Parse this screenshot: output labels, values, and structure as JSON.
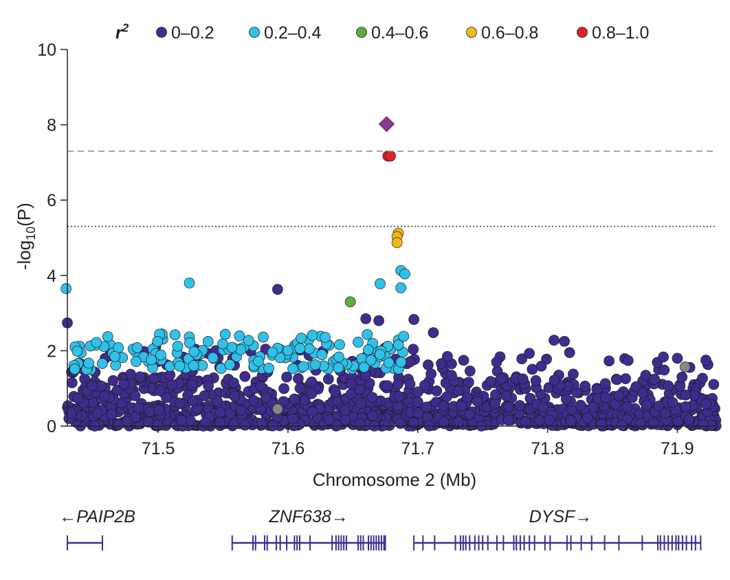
{
  "chart_data": {
    "type": "scatter",
    "subtype": "regional-association-plot",
    "xlabel": "Chromosome 2 (Mb)",
    "ylabel_prefix": "-log",
    "ylabel_sub": "10",
    "ylabel_suffix": "(P)",
    "xlim": [
      71.43,
      71.93
    ],
    "ylim": [
      0,
      10
    ],
    "xticks": [
      71.5,
      71.6,
      71.7,
      71.8,
      71.9
    ],
    "yticks": [
      0,
      2,
      4,
      6,
      8,
      10
    ],
    "genome_wide_threshold": 7.3,
    "suggestive_threshold": 5.3,
    "legend": {
      "title": "r",
      "title_sup": "2",
      "entries": [
        {
          "label": "0–0.2",
          "color": "#3f2d8e"
        },
        {
          "label": "0.2–0.4",
          "color": "#30c0e8"
        },
        {
          "label": "0.4–0.6",
          "color": "#5aad3a"
        },
        {
          "label": "0.6–0.8",
          "color": "#f0b81a"
        },
        {
          "label": "0.8–1.0",
          "color": "#e0202a"
        }
      ]
    },
    "lead_snp": {
      "x": 71.676,
      "y": 8.02,
      "color": "#8a3a8a"
    },
    "highlight_points": [
      {
        "x": 71.677,
        "y": 7.17,
        "bin": 4
      },
      {
        "x": 71.679,
        "y": 7.17,
        "bin": 4
      },
      {
        "x": 71.685,
        "y": 5.12,
        "bin": 3
      },
      {
        "x": 71.684,
        "y": 5.03,
        "bin": 3
      },
      {
        "x": 71.684,
        "y": 4.87,
        "bin": 3
      },
      {
        "x": 71.648,
        "y": 3.3,
        "bin": 2
      },
      {
        "x": 71.429,
        "y": 3.65,
        "bin": 1
      },
      {
        "x": 71.524,
        "y": 3.8,
        "bin": 1
      },
      {
        "x": 71.671,
        "y": 3.78,
        "bin": 1
      },
      {
        "x": 71.687,
        "y": 4.13,
        "bin": 1
      },
      {
        "x": 71.69,
        "y": 4.04,
        "bin": 1
      },
      {
        "x": 71.687,
        "y": 3.67,
        "bin": 1
      },
      {
        "x": 71.592,
        "y": 3.63,
        "bin": 0
      },
      {
        "x": 71.43,
        "y": 2.74,
        "bin": 0
      },
      {
        "x": 71.66,
        "y": 2.85,
        "bin": 0
      },
      {
        "x": 71.67,
        "y": 2.8,
        "bin": 0
      },
      {
        "x": 71.697,
        "y": 2.83,
        "bin": 0
      },
      {
        "x": 71.712,
        "y": 2.48,
        "bin": 0
      },
      {
        "x": 71.786,
        "y": 1.93,
        "bin": 0
      },
      {
        "x": 71.805,
        "y": 2.28,
        "bin": 0
      },
      {
        "x": 71.813,
        "y": 2.25,
        "bin": 0
      },
      {
        "x": 71.817,
        "y": 1.95,
        "bin": 0
      },
      {
        "x": 71.9,
        "y": 1.8,
        "bin": 0
      },
      {
        "x": 71.922,
        "y": 1.75,
        "bin": 0
      },
      {
        "x": 71.906,
        "y": 1.57,
        "color": "#888888"
      },
      {
        "x": 71.592,
        "y": 0.45,
        "color": "#888888"
      }
    ],
    "background_regions": [
      {
        "x0": 71.43,
        "x1": 71.69,
        "y0": 1.5,
        "y1": 2.45,
        "n": 150,
        "bin": 1,
        "seed": 11
      },
      {
        "x0": 71.43,
        "x1": 71.7,
        "y0": 0.0,
        "y1": 0.6,
        "n": 460,
        "bin": 0,
        "seed": 23
      },
      {
        "x0": 71.43,
        "x1": 71.7,
        "y0": 0.6,
        "y1": 1.3,
        "n": 190,
        "bin": 0,
        "seed": 37
      },
      {
        "x0": 71.43,
        "x1": 71.7,
        "y0": 1.3,
        "y1": 2.1,
        "n": 65,
        "bin": 0,
        "seed": 41
      },
      {
        "x0": 71.69,
        "x1": 71.93,
        "y0": 0.0,
        "y1": 0.5,
        "n": 380,
        "bin": 0,
        "seed": 53
      },
      {
        "x0": 71.7,
        "x1": 71.93,
        "y0": 0.5,
        "y1": 1.2,
        "n": 170,
        "bin": 0,
        "seed": 67
      },
      {
        "x0": 71.7,
        "x1": 71.93,
        "y0": 1.2,
        "y1": 1.85,
        "n": 45,
        "bin": 0,
        "seed": 79
      }
    ],
    "genes": [
      {
        "name": "←PAIP2B",
        "start": 71.43,
        "end": 71.457,
        "label_x": 71.457,
        "exons": [
          71.43,
          71.457
        ]
      },
      {
        "name": "ZNF638→",
        "start": 71.557,
        "end": 71.675,
        "label_x": 71.616,
        "exons": [
          71.557,
          71.573,
          71.575,
          71.582,
          71.584,
          71.591,
          71.594,
          71.599,
          71.605,
          71.607,
          71.609,
          71.617,
          71.634,
          71.637,
          71.639,
          71.641,
          71.643,
          71.645,
          71.654,
          71.656,
          71.658,
          71.662,
          71.664,
          71.666,
          71.668,
          71.67,
          71.672,
          71.674,
          71.675
        ]
      },
      {
        "name": "DYSF→",
        "start": 71.697,
        "end": 71.918,
        "label_x": 71.81,
        "exons": [
          71.697,
          71.704,
          71.713,
          71.729,
          71.733,
          71.735,
          71.737,
          71.74,
          71.744,
          71.747,
          71.75,
          71.754,
          71.761,
          71.766,
          71.774,
          71.776,
          71.779,
          71.782,
          71.786,
          71.79,
          71.798,
          71.802,
          71.815,
          71.818,
          71.826,
          71.834,
          71.844,
          71.855,
          71.873,
          71.885,
          71.887,
          71.89,
          71.893,
          71.896,
          71.899,
          71.901,
          71.904,
          71.907,
          71.911,
          71.914,
          71.918
        ]
      }
    ]
  }
}
